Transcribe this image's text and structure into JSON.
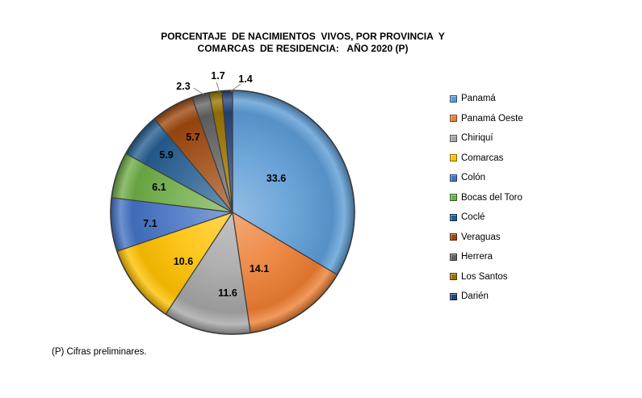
{
  "title": {
    "line1": "PORCENTAJE  DE NACIMIENTOS  VIVOS, POR PROVINCIA  Y",
    "line2": "COMARCAS  DE RESIDENCIA:   AÑO 2020 (P)"
  },
  "footnote": "(P) Cifras preliminares.",
  "chart_data": {
    "type": "pie",
    "title": "PORCENTAJE DE NACIMIENTOS VIVOS, POR PROVINCIA Y COMARCAS DE RESIDENCIA: AÑO 2020 (P)",
    "unit": "percent",
    "labels": [
      "Panamá",
      "Panamá Oeste",
      "Chiriquí",
      "Comarcas",
      "Colón",
      "Bocas del Toro",
      "Coclé",
      "Veraguas",
      "Herrera",
      "Los Santos",
      "Darién"
    ],
    "values": [
      33.6,
      14.1,
      11.6,
      10.6,
      7.1,
      6.1,
      5.9,
      5.7,
      2.3,
      1.7,
      1.4
    ],
    "colors": [
      "#5B9BD5",
      "#ED7D31",
      "#A5A5A5",
      "#FFC000",
      "#4472C4",
      "#70AD47",
      "#255E91",
      "#9E480E",
      "#636363",
      "#997300",
      "#264478"
    ],
    "start_angle_deg": 0,
    "direction": "clockwise",
    "legend_position": "right",
    "data_labels_note": "values shown inside slices; slices below 3% labeled outside with leader lines"
  }
}
